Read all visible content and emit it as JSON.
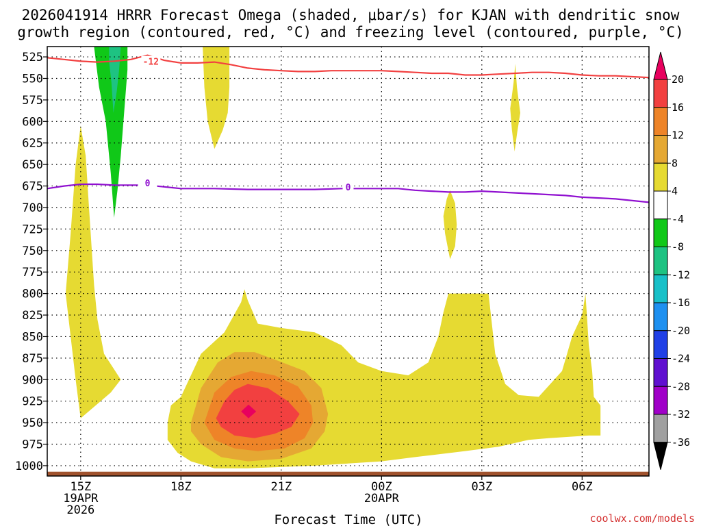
{
  "chart_data": {
    "type": "contour",
    "title_line1": "2026041914 HRRR Forecast Omega (shaded, μbar/s) for KJAN with dendritic snow",
    "title_line2": "growth region (contoured, red, °C) and freezing level (contoured, purple, °C)",
    "xlabel": "Forecast Time (UTC)",
    "credit": "coolwx.com/models",
    "xlim": [
      14,
      32
    ],
    "ylim": [
      1012,
      513
    ],
    "y_ticks": [
      525,
      550,
      575,
      600,
      625,
      650,
      675,
      700,
      725,
      750,
      775,
      800,
      825,
      850,
      875,
      900,
      925,
      950,
      975,
      1000
    ],
    "x_ticks": [
      {
        "value": 15,
        "lines": [
          "15Z",
          "19APR",
          "2026"
        ]
      },
      {
        "value": 18,
        "lines": [
          "18Z"
        ]
      },
      {
        "value": 21,
        "lines": [
          "21Z"
        ]
      },
      {
        "value": 24,
        "lines": [
          "00Z",
          "20APR"
        ]
      },
      {
        "value": 27,
        "lines": [
          "03Z"
        ]
      },
      {
        "value": 30,
        "lines": [
          "06Z"
        ]
      }
    ],
    "colorbar": {
      "labels": [
        "20",
        "16",
        "12",
        "8",
        "4",
        "-4",
        "-8",
        "-12",
        "-16",
        "-20",
        "-24",
        "-28",
        "-32",
        "-36"
      ],
      "segments": [
        {
          "color": "#e8005e"
        },
        {
          "color": "#f24040"
        },
        {
          "color": "#ee8428"
        },
        {
          "color": "#e5a833"
        },
        {
          "color": "#e6da32"
        },
        {
          "color": "#ffffff"
        },
        {
          "color": "#10c818"
        },
        {
          "color": "#1ec382"
        },
        {
          "color": "#18c0c8"
        },
        {
          "color": "#1e90f0"
        },
        {
          "color": "#2040e6"
        },
        {
          "color": "#6010d0"
        },
        {
          "color": "#a000c8"
        },
        {
          "color": "#a0a0a0"
        },
        {
          "color": "#000000"
        }
      ]
    },
    "shading": [
      {
        "name": "yellow-plume-15z",
        "level": 4,
        "color": "#e6da32",
        "points": [
          [
            15.0,
            605
          ],
          [
            15.15,
            640
          ],
          [
            15.25,
            700
          ],
          [
            15.4,
            790
          ],
          [
            15.5,
            830
          ],
          [
            15.7,
            870
          ],
          [
            15.95,
            885
          ],
          [
            16.2,
            900
          ],
          [
            15.9,
            915
          ],
          [
            15.6,
            925
          ],
          [
            15.0,
            945
          ],
          [
            14.85,
            900
          ],
          [
            14.7,
            850
          ],
          [
            14.55,
            800
          ],
          [
            14.7,
            730
          ],
          [
            14.85,
            650
          ]
        ]
      },
      {
        "name": "yellow-upper-19z",
        "level": 4,
        "color": "#e6da32",
        "points": [
          [
            18.65,
            513
          ],
          [
            19.45,
            513
          ],
          [
            19.45,
            560
          ],
          [
            19.4,
            590
          ],
          [
            19.25,
            610
          ],
          [
            19.0,
            632
          ],
          [
            18.8,
            600
          ],
          [
            18.7,
            560
          ]
        ]
      },
      {
        "name": "yellow-upper-04z",
        "level": 4,
        "color": "#e6da32",
        "points": [
          [
            27.85,
            585
          ],
          [
            27.95,
            555
          ],
          [
            28.0,
            533
          ],
          [
            28.05,
            560
          ],
          [
            28.15,
            590
          ],
          [
            28.05,
            615
          ],
          [
            27.98,
            635
          ],
          [
            27.9,
            610
          ]
        ]
      },
      {
        "name": "yellow-mid-02z",
        "level": 4,
        "color": "#e6da32",
        "points": [
          [
            25.9,
            730
          ],
          [
            25.85,
            710
          ],
          [
            25.95,
            690
          ],
          [
            26.05,
            680
          ],
          [
            26.2,
            695
          ],
          [
            26.25,
            720
          ],
          [
            26.2,
            745
          ],
          [
            26.05,
            760
          ]
        ]
      },
      {
        "name": "yellow-lower-main",
        "level": 4,
        "color": "#e6da32",
        "points": [
          [
            17.6,
            950
          ],
          [
            17.7,
            930
          ],
          [
            18.0,
            920
          ],
          [
            18.6,
            870
          ],
          [
            19.3,
            845
          ],
          [
            19.8,
            810
          ],
          [
            19.9,
            795
          ],
          [
            20.0,
            808
          ],
          [
            20.3,
            835
          ],
          [
            21.0,
            840
          ],
          [
            22.0,
            845
          ],
          [
            22.8,
            860
          ],
          [
            23.3,
            880
          ],
          [
            24.0,
            890
          ],
          [
            24.8,
            895
          ],
          [
            25.4,
            880
          ],
          [
            25.7,
            850
          ],
          [
            25.85,
            822
          ],
          [
            26.0,
            800
          ],
          [
            26.2,
            800
          ],
          [
            26.5,
            800
          ],
          [
            27.2,
            800
          ],
          [
            27.4,
            870
          ],
          [
            27.7,
            905
          ],
          [
            28.1,
            918
          ],
          [
            28.7,
            920
          ],
          [
            29.4,
            890
          ],
          [
            29.7,
            850
          ],
          [
            30.0,
            825
          ],
          [
            30.1,
            800
          ],
          [
            30.15,
            830
          ],
          [
            30.2,
            860
          ],
          [
            30.3,
            890
          ],
          [
            30.35,
            920
          ],
          [
            30.55,
            930
          ],
          [
            30.55,
            965
          ],
          [
            30.2,
            965
          ],
          [
            29.0,
            968
          ],
          [
            28.4,
            970
          ],
          [
            27.5,
            978
          ],
          [
            26.5,
            983
          ],
          [
            25.0,
            990
          ],
          [
            24.0,
            995
          ],
          [
            22.0,
            1000
          ],
          [
            20.0,
            1003
          ],
          [
            19.0,
            1003
          ],
          [
            18.3,
            995
          ],
          [
            17.9,
            985
          ],
          [
            17.6,
            970
          ]
        ]
      },
      {
        "name": "orange-light-ring",
        "level": 8,
        "color": "#e5a833",
        "points": [
          [
            18.3,
            950
          ],
          [
            18.6,
            910
          ],
          [
            19.1,
            880
          ],
          [
            19.6,
            868
          ],
          [
            20.2,
            868
          ],
          [
            20.9,
            878
          ],
          [
            21.7,
            890
          ],
          [
            22.2,
            910
          ],
          [
            22.4,
            940
          ],
          [
            22.3,
            960
          ],
          [
            21.9,
            980
          ],
          [
            21.0,
            992
          ],
          [
            20.0,
            995
          ],
          [
            19.2,
            990
          ],
          [
            18.6,
            975
          ],
          [
            18.3,
            960
          ]
        ]
      },
      {
        "name": "orange-ring",
        "level": 12,
        "color": "#ee8428",
        "points": [
          [
            18.7,
            950
          ],
          [
            19.0,
            915
          ],
          [
            19.5,
            897
          ],
          [
            20.1,
            890
          ],
          [
            20.8,
            895
          ],
          [
            21.5,
            908
          ],
          [
            21.9,
            930
          ],
          [
            21.95,
            950
          ],
          [
            21.7,
            968
          ],
          [
            21.1,
            980
          ],
          [
            20.3,
            983
          ],
          [
            19.6,
            980
          ],
          [
            19.0,
            970
          ]
        ]
      },
      {
        "name": "red-core",
        "level": 16,
        "color": "#f24040",
        "points": [
          [
            19.05,
            945
          ],
          [
            19.3,
            925
          ],
          [
            19.6,
            912
          ],
          [
            20.0,
            905
          ],
          [
            20.6,
            910
          ],
          [
            21.2,
            925
          ],
          [
            21.55,
            940
          ],
          [
            21.3,
            955
          ],
          [
            20.8,
            963
          ],
          [
            20.2,
            968
          ],
          [
            19.6,
            965
          ],
          [
            19.2,
            955
          ]
        ]
      },
      {
        "name": "magenta-max",
        "level": 20,
        "color": "#e8005e",
        "points": [
          [
            19.8,
            937
          ],
          [
            20.02,
            929
          ],
          [
            20.25,
            937
          ],
          [
            20.02,
            945
          ]
        ]
      },
      {
        "name": "green-column",
        "level": -4,
        "color": "#10c818",
        "points": [
          [
            15.4,
            513
          ],
          [
            16.4,
            513
          ],
          [
            16.4,
            540
          ],
          [
            16.3,
            590
          ],
          [
            16.2,
            640
          ],
          [
            16.1,
            680
          ],
          [
            16.0,
            712
          ],
          [
            15.9,
            660
          ],
          [
            15.75,
            600
          ],
          [
            15.55,
            560
          ]
        ]
      },
      {
        "name": "teal-column",
        "level": -8,
        "color": "#1ec382",
        "points": [
          [
            15.85,
            513
          ],
          [
            16.2,
            513
          ],
          [
            16.15,
            540
          ],
          [
            16.08,
            565
          ],
          [
            15.98,
            590
          ],
          [
            15.92,
            555
          ],
          [
            15.85,
            530
          ]
        ]
      }
    ],
    "contours": [
      {
        "name": "dendritic-minus12",
        "label": "-12",
        "color": "#f24040",
        "label_at": [
          17.1,
          531
        ],
        "points": [
          [
            14.0,
            526
          ],
          [
            14.5,
            528
          ],
          [
            15.0,
            530
          ],
          [
            15.5,
            531
          ],
          [
            16.0,
            530
          ],
          [
            16.5,
            528
          ],
          [
            17.0,
            523
          ],
          [
            17.5,
            529
          ],
          [
            18.0,
            532
          ],
          [
            18.5,
            532
          ],
          [
            19.0,
            531
          ],
          [
            19.5,
            534
          ],
          [
            20.0,
            538
          ],
          [
            20.5,
            540
          ],
          [
            21.0,
            541
          ],
          [
            21.5,
            542
          ],
          [
            22.0,
            542
          ],
          [
            22.5,
            541
          ],
          [
            23.0,
            541
          ],
          [
            23.5,
            541
          ],
          [
            24.0,
            541
          ],
          [
            24.5,
            542
          ],
          [
            25.0,
            543
          ],
          [
            25.5,
            544
          ],
          [
            26.0,
            544
          ],
          [
            26.5,
            546
          ],
          [
            27.0,
            546
          ],
          [
            27.5,
            545
          ],
          [
            28.0,
            544
          ],
          [
            28.5,
            543
          ],
          [
            29.0,
            543
          ],
          [
            29.5,
            544
          ],
          [
            30.0,
            546
          ],
          [
            30.5,
            547
          ],
          [
            31.0,
            547
          ],
          [
            31.5,
            548
          ],
          [
            32.0,
            549
          ]
        ]
      },
      {
        "name": "freezing-level-0",
        "label": "0",
        "color": "#9010d0",
        "label_at": [
          17.0,
          672
        ],
        "points": [
          [
            14.0,
            678
          ],
          [
            14.5,
            675
          ],
          [
            15.0,
            673
          ],
          [
            15.5,
            673
          ],
          [
            16.0,
            674
          ],
          [
            16.5,
            674
          ],
          [
            17.0,
            674
          ],
          [
            17.5,
            676
          ],
          [
            18.0,
            678
          ],
          [
            18.5,
            678
          ],
          [
            19.0,
            678
          ],
          [
            20.0,
            679
          ],
          [
            21.0,
            679
          ],
          [
            22.0,
            679
          ],
          [
            22.8,
            678
          ],
          [
            23.4,
            678
          ],
          [
            24.0,
            678
          ],
          [
            24.5,
            678
          ],
          [
            25.0,
            680
          ],
          [
            25.5,
            681
          ],
          [
            26.0,
            682
          ],
          [
            26.5,
            682
          ],
          [
            27.0,
            681
          ],
          [
            27.5,
            682
          ],
          [
            28.0,
            683
          ],
          [
            28.5,
            684
          ],
          [
            29.0,
            685
          ],
          [
            29.5,
            686
          ],
          [
            30.0,
            688
          ],
          [
            30.5,
            689
          ],
          [
            31.0,
            690
          ],
          [
            31.5,
            692
          ],
          [
            32.0,
            694
          ]
        ]
      }
    ],
    "contour_label_2": {
      "label": "0",
      "at": [
        23.0,
        677
      ]
    },
    "ground": {
      "color": "#a0522d",
      "top": 1007
    }
  }
}
